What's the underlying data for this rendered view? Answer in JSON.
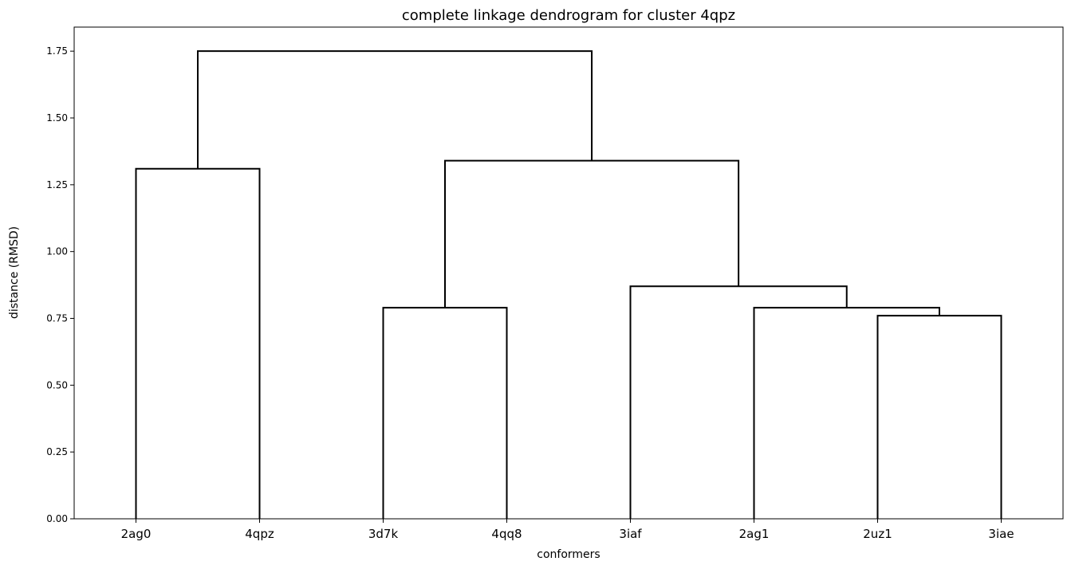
{
  "chart_data": {
    "type": "dendrogram",
    "title": "complete linkage dendrogram for cluster 4qpz",
    "xlabel": "conformers",
    "ylabel": "distance (RMSD)",
    "ylim": [
      0.0,
      1.84
    ],
    "yticks": [
      "0.00",
      "0.25",
      "0.50",
      "0.75",
      "1.00",
      "1.25",
      "1.50",
      "1.75"
    ],
    "leaves": [
      "2ag0",
      "4qpz",
      "3d7k",
      "4qq8",
      "3iaf",
      "2ag1",
      "2uz1",
      "3iae"
    ],
    "merges": [
      {
        "left": [
          "2uz1"
        ],
        "right": [
          "3iae"
        ],
        "distance": 0.76
      },
      {
        "left": [
          "2ag1"
        ],
        "right": [
          "2uz1",
          "3iae"
        ],
        "distance": 0.79
      },
      {
        "left": [
          "3d7k"
        ],
        "right": [
          "4qq8"
        ],
        "distance": 0.79
      },
      {
        "left": [
          "3iaf"
        ],
        "right": [
          "2ag1",
          "2uz1",
          "3iae"
        ],
        "distance": 0.87
      },
      {
        "left": [
          "2ag0"
        ],
        "right": [
          "4qpz"
        ],
        "distance": 1.31
      },
      {
        "left": [
          "3d7k",
          "4qq8"
        ],
        "right": [
          "3iaf",
          "2ag1",
          "2uz1",
          "3iae"
        ],
        "distance": 1.34
      },
      {
        "left": [
          "2ag0",
          "4qpz"
        ],
        "right": [
          "3d7k",
          "4qq8",
          "3iaf",
          "2ag1",
          "2uz1",
          "3iae"
        ],
        "distance": 1.75
      }
    ],
    "line_color": "#000000",
    "grid": false,
    "legend": "none"
  }
}
